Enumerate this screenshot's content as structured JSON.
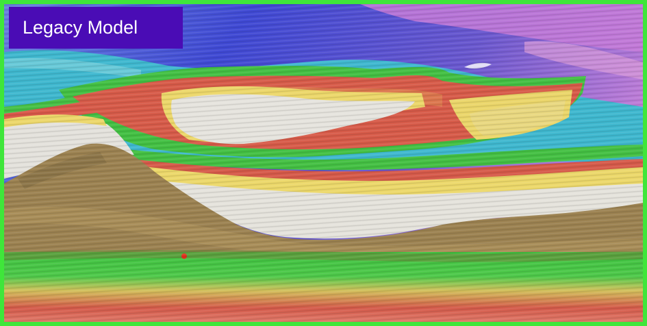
{
  "title": "Legacy Model",
  "colors": {
    "border": "#3fe63a",
    "label_background": "#4a0cb5",
    "label_text": "#ffffff",
    "sky_magenta": "#c27ad6",
    "blue": "#4b54d6",
    "cyan": "#41bcd0",
    "green": "#43c043",
    "red": "#d9584a",
    "yellow": "#ecd86a",
    "white": "#e4e2dc",
    "brown": "#9a8250"
  }
}
